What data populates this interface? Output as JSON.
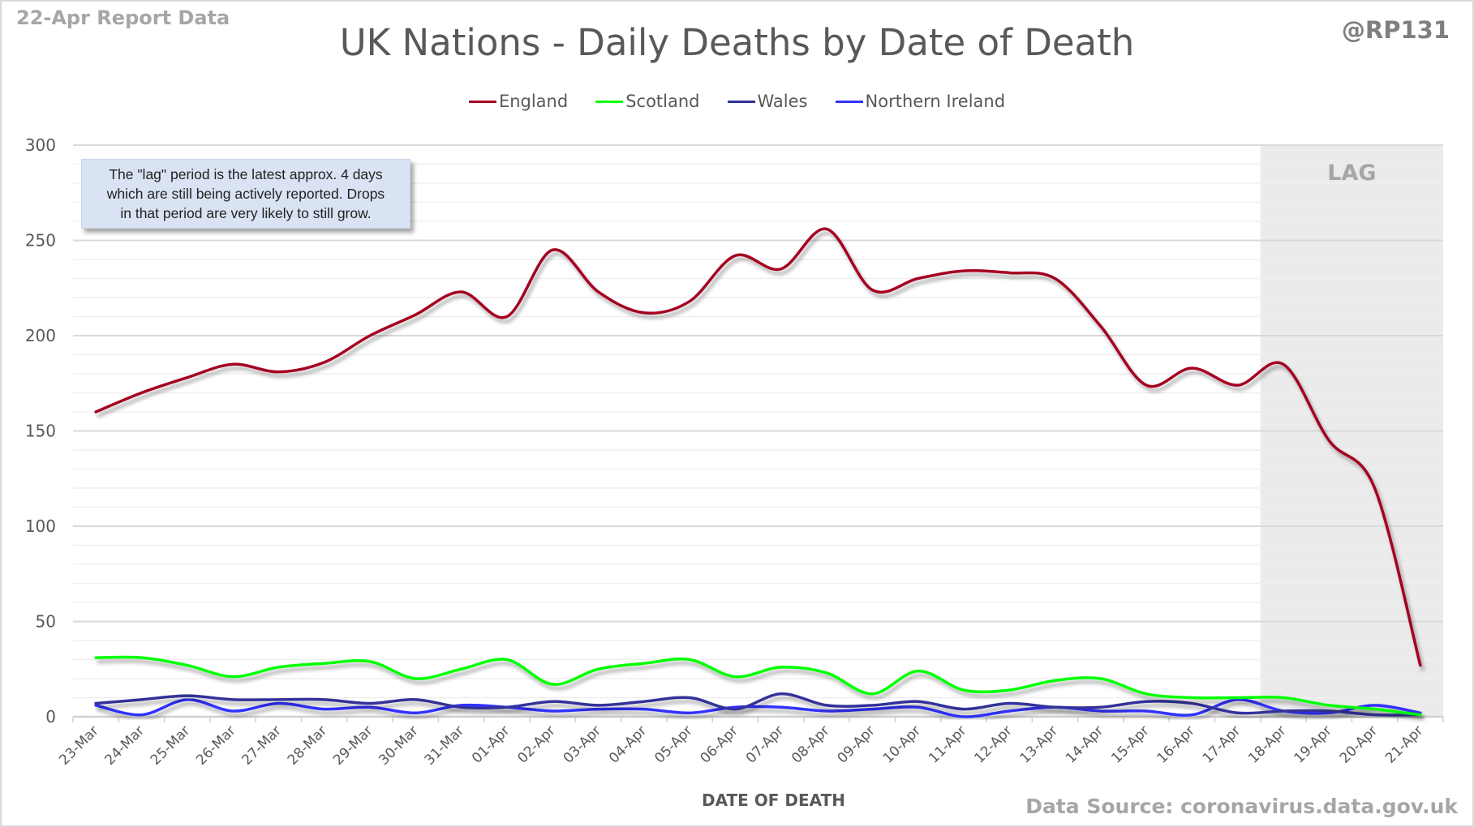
{
  "header": {
    "report_label": "22-Apr Report Data",
    "handle": "@RP131",
    "source": "Data Source: coronavirus.data.gov.uk"
  },
  "annotation": {
    "lines": [
      "The \"lag\" period is the latest approx. 4 days",
      "which are still being actively reported. Drops",
      "in that period are very likely to still grow."
    ]
  },
  "chart_data": {
    "type": "line",
    "title": "UK Nations - Daily Deaths by Date of Death",
    "xlabel": "DATE OF DEATH",
    "ylabel": "",
    "ylim": [
      0,
      300
    ],
    "yticks": [
      0,
      50,
      100,
      150,
      200,
      250,
      300
    ],
    "minor_grid_step": 10,
    "grid": true,
    "smoothed": true,
    "legend_position": "top-center",
    "categories": [
      "23-Mar",
      "24-Mar",
      "25-Mar",
      "26-Mar",
      "27-Mar",
      "28-Mar",
      "29-Mar",
      "30-Mar",
      "31-Mar",
      "01-Apr",
      "02-Apr",
      "03-Apr",
      "04-Apr",
      "05-Apr",
      "06-Apr",
      "07-Apr",
      "08-Apr",
      "09-Apr",
      "10-Apr",
      "11-Apr",
      "12-Apr",
      "13-Apr",
      "14-Apr",
      "15-Apr",
      "16-Apr",
      "17-Apr",
      "18-Apr",
      "19-Apr",
      "20-Apr",
      "21-Apr"
    ],
    "series": [
      {
        "name": "England",
        "color": "#a50021",
        "values": [
          160,
          170,
          178,
          185,
          181,
          186,
          200,
          211,
          223,
          210,
          245,
          223,
          212,
          218,
          242,
          235,
          256,
          224,
          230,
          234,
          233,
          230,
          205,
          174,
          183,
          174,
          185,
          145,
          120,
          27
        ]
      },
      {
        "name": "Scotland",
        "color": "#00ff00",
        "values": [
          31,
          31,
          27,
          21,
          26,
          28,
          29,
          20,
          25,
          30,
          17,
          25,
          28,
          30,
          21,
          26,
          23,
          12,
          24,
          14,
          14,
          19,
          20,
          12,
          10,
          10,
          10,
          6,
          4,
          1
        ]
      },
      {
        "name": "Wales",
        "color": "#333399",
        "values": [
          7,
          9,
          11,
          9,
          9,
          9,
          7,
          9,
          5,
          5,
          8,
          6,
          8,
          10,
          4,
          12,
          6,
          6,
          8,
          4,
          7,
          5,
          5,
          8,
          7,
          2,
          3,
          3,
          1,
          1
        ]
      },
      {
        "name": "Northern Ireland",
        "color": "#3333ff",
        "values": [
          6,
          1,
          9,
          3,
          7,
          4,
          5,
          2,
          6,
          5,
          3,
          4,
          4,
          2,
          5,
          5,
          3,
          4,
          5,
          0,
          3,
          5,
          3,
          3,
          1,
          9,
          3,
          2,
          6,
          2
        ]
      }
    ],
    "shaded_region": {
      "label": "LAG",
      "from": "18-Apr",
      "to": "21-Apr",
      "color": "#ebebeb"
    }
  }
}
